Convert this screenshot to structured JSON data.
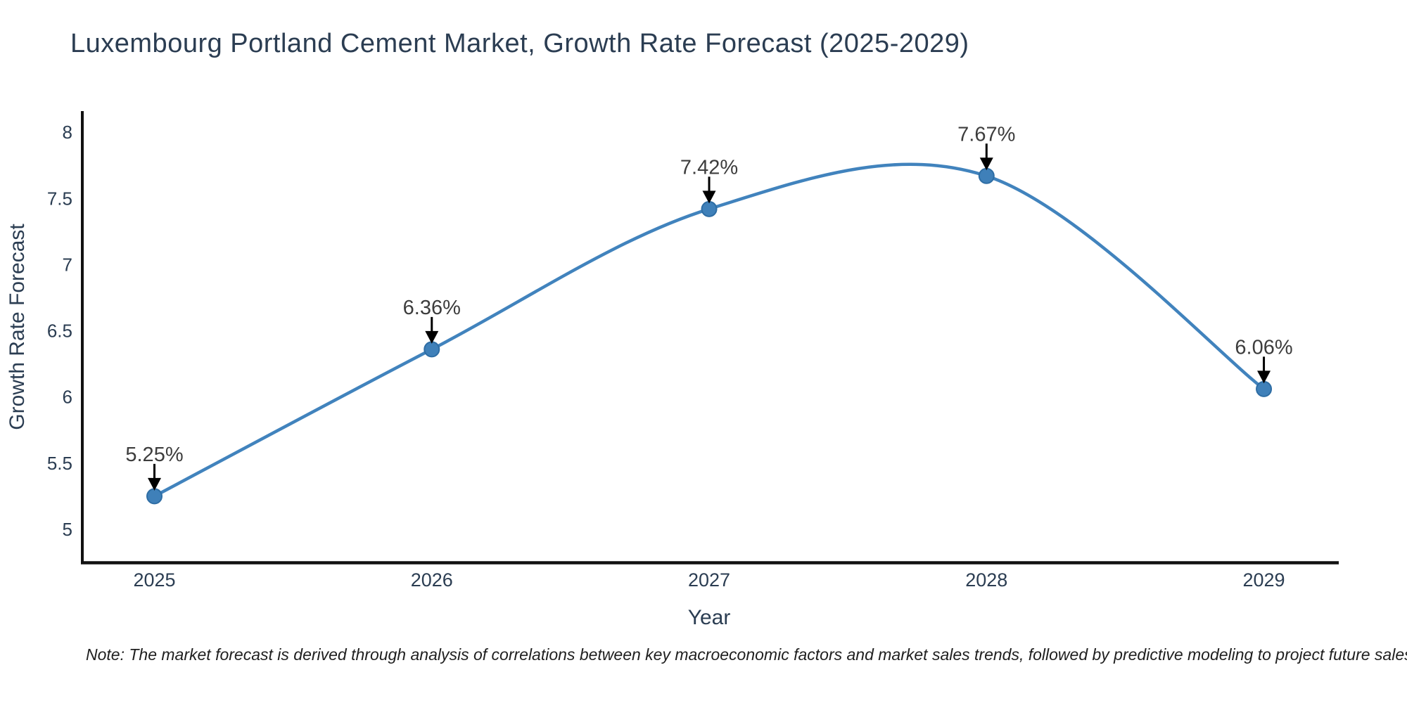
{
  "title": "Luxembourg Portland Cement Market, Growth Rate Forecast (2025-2029)",
  "note": "Note: The market forecast is derived through analysis of correlations between key macroeconomic factors and market sales trends, followed by predictive modeling to project future sales.",
  "chart_data": {
    "type": "line",
    "title": "Luxembourg Portland Cement Market, Growth Rate Forecast (2025-2029)",
    "x": [
      2025,
      2026,
      2027,
      2028,
      2029
    ],
    "y": [
      5.25,
      6.36,
      7.42,
      7.67,
      6.06
    ],
    "point_labels": [
      "5.25%",
      "6.36%",
      "7.42%",
      "7.67%",
      "6.06%"
    ],
    "xlabel": "Year",
    "ylabel": "Growth Rate Forecast",
    "xticks": [
      2025,
      2026,
      2027,
      2028,
      2029
    ],
    "yticks": [
      5,
      5.5,
      6,
      6.5,
      7,
      7.5,
      8
    ],
    "xlim": [
      2024.74,
      2029.27
    ],
    "ylim": [
      4.75,
      8.16
    ],
    "line_shape": "spline",
    "grid": false,
    "legend": "none",
    "colors": {
      "line": "#4183bd",
      "marker_fill": "#3f80b9",
      "marker_edge": "#2e6da4",
      "axis": "#111111",
      "tick_text": "#2b3d52",
      "annotation_text": "#3d3d3d",
      "arrow": "#000000",
      "title_text": "#2b3d52",
      "note_text": "#1f1f1f",
      "background": "#ffffff"
    }
  }
}
